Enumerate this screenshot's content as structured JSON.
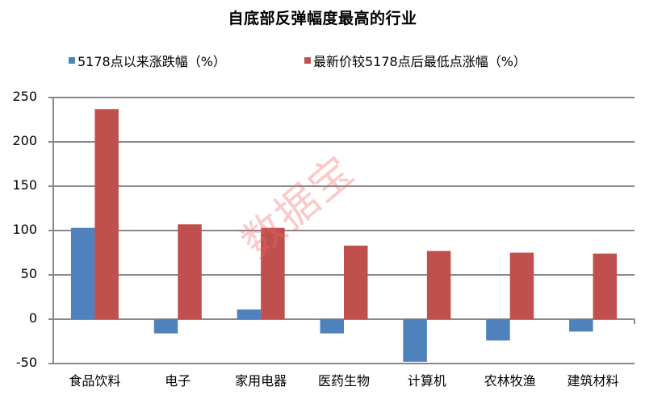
{
  "chart_data": {
    "type": "bar",
    "title": "自底部反弹幅度最高的行业",
    "xlabel": "",
    "ylabel": "",
    "categories": [
      "食品饮料",
      "电子",
      "家用电器",
      "医药生物",
      "计算机",
      "农林牧渔",
      "建筑材料"
    ],
    "series": [
      {
        "name": "5178点以来涨跌幅（%）",
        "color": "#4F81BD",
        "values": [
          103,
          -16,
          11,
          -16,
          -48,
          -24,
          -14
        ]
      },
      {
        "name": "最新价较5178点后最低点涨幅（%）",
        "color": "#C0504D",
        "values": [
          237,
          107,
          103,
          83,
          77,
          75,
          74
        ]
      }
    ],
    "ylim": [
      -50,
      250
    ],
    "yticks": [
      250,
      200,
      150,
      100,
      50,
      0,
      -50
    ],
    "grid": true,
    "legend_position": "top"
  },
  "title": "自底部反弹幅度最高的行业",
  "legend": [
    {
      "label": "5178点以来涨跌幅（%）",
      "color": "#4F81BD"
    },
    {
      "label": "最新价较5178点后最低点涨幅（%）",
      "color": "#C0504D"
    }
  ],
  "yaxis": {
    "ticks": [
      "250",
      "200",
      "150",
      "100",
      "50",
      "0",
      "-50"
    ]
  },
  "xaxis": {
    "labels": [
      "食品饮料",
      "电子",
      "家用电器",
      "医药生物",
      "计算机",
      "农林牧渔",
      "建筑材料"
    ]
  },
  "watermark": "数据宝",
  "colors": {
    "axis": "#888888",
    "grid": "#888888",
    "series1": "#4F81BD",
    "series2": "#C0504D"
  }
}
